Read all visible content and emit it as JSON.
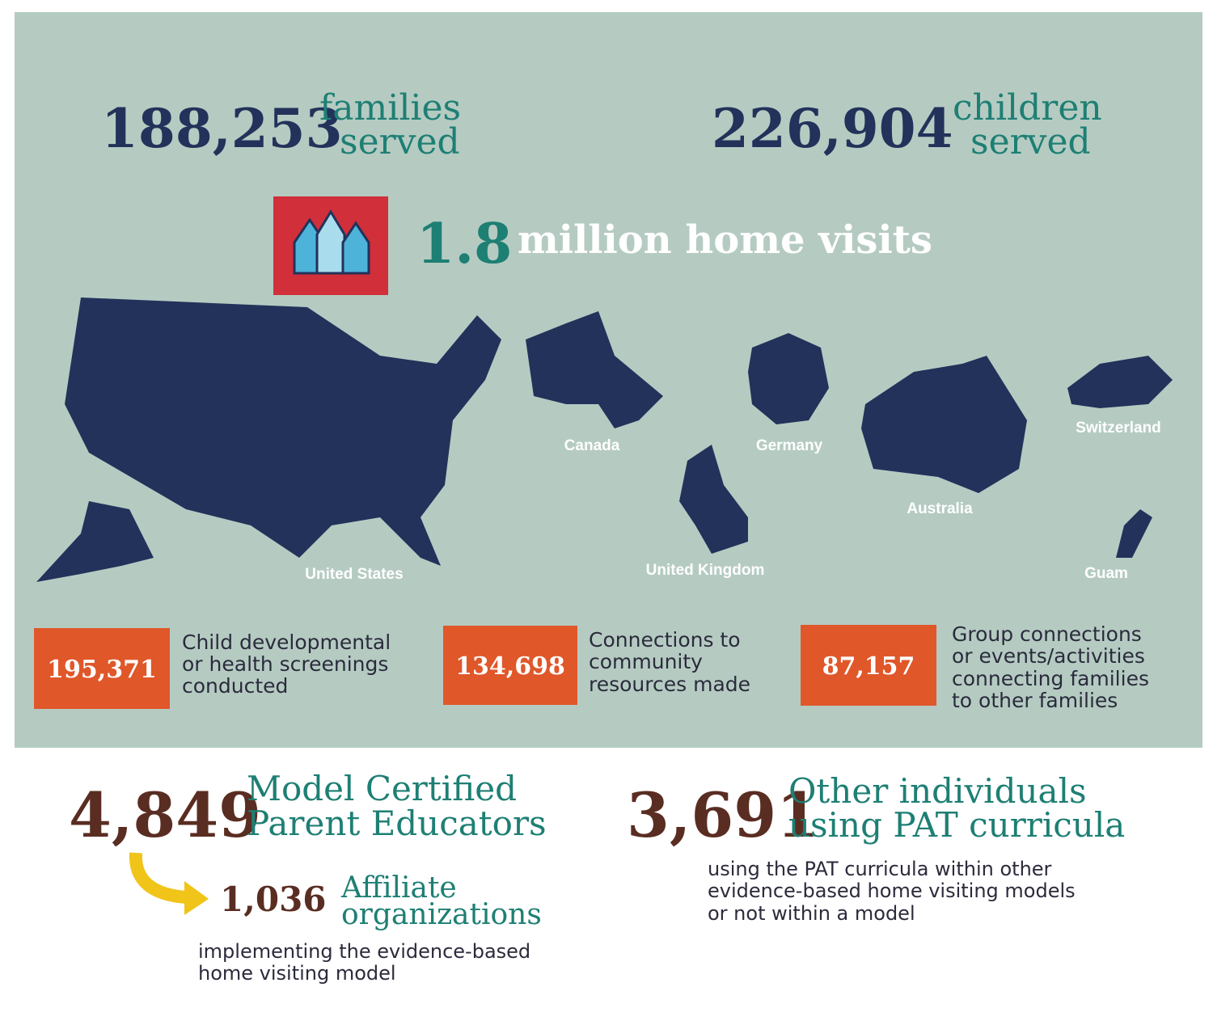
{
  "stats_top": [
    {
      "number": "188,253",
      "label": [
        "families",
        "served"
      ]
    },
    {
      "number": "226,904",
      "label": [
        "children",
        "served"
      ]
    }
  ],
  "home_visits": {
    "number": "1.8",
    "label": "million home visits"
  },
  "countries": [
    "United States",
    "Canada",
    "United Kingdom",
    "Germany",
    "Australia",
    "Switzerland",
    "Guam"
  ],
  "activities": [
    {
      "number": "195,371",
      "label": [
        "Child developmental",
        "or health screenings",
        "conducted"
      ]
    },
    {
      "number": "134,698",
      "label": [
        "Connections to",
        "community",
        "resources made"
      ]
    },
    {
      "number": "87,157",
      "label": [
        "Group connections",
        "or events/activities",
        "connecting families",
        "to other families"
      ]
    }
  ],
  "educators": {
    "number": "4,849",
    "label": [
      "Model Certified",
      "Parent Educators"
    ]
  },
  "affiliates": {
    "number": "1,036",
    "label": [
      "Affiliate",
      "organizations"
    ],
    "note": [
      "implementing the evidence-based",
      "home visiting model"
    ]
  },
  "others": {
    "number": "3,691",
    "label": [
      "Other individuals",
      "using PAT curricula"
    ],
    "note": [
      "using the PAT curricula within other",
      "evidence-based home visiting models",
      "or not within a model"
    ]
  }
}
